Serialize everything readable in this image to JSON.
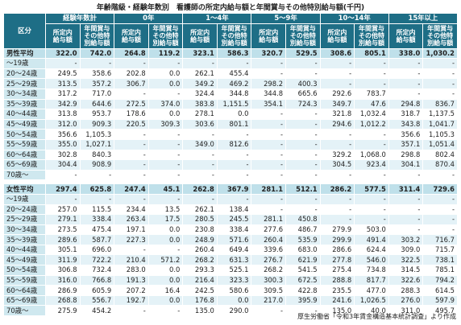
{
  "title": "年齢階級・経験年数別　看護師の所定内給与額と年間賞与その他特別給与額(千円)",
  "header": {
    "category": "区分",
    "groups": [
      "経験年数計",
      "0年",
      "1～4年",
      "5～9年",
      "10～14年",
      "15年以上"
    ],
    "subheaders": [
      "所定内\n給与額",
      "年間賞与\nその他特\n別給与額"
    ]
  },
  "sections": [
    {
      "rows": [
        [
          "男性平均",
          "322.0",
          "742.0",
          "264.8",
          "119.2",
          "323.1",
          "586.3",
          "320.7",
          "529.5",
          "308.6",
          "805.1",
          "338.0",
          "1,030.2"
        ],
        [
          "～19歳",
          "-",
          "-",
          "-",
          "-",
          "-",
          "-",
          "-",
          "-",
          "-",
          "-",
          "-",
          "-"
        ],
        [
          "20～24歳",
          "249.5",
          "358.6",
          "202.8",
          "0.0",
          "262.1",
          "455.4",
          "-",
          "-",
          "-",
          "-",
          "-",
          "-"
        ],
        [
          "25～29歳",
          "313.5",
          "357.2",
          "306.7",
          "0.0",
          "349.2",
          "469.2",
          "298.2",
          "400.3",
          "-",
          "-",
          "-",
          "-"
        ],
        [
          "30～34歳",
          "317.2",
          "717.0",
          "-",
          "-",
          "324.4",
          "344.8",
          "344.8",
          "665.6",
          "292.6",
          "783.7",
          "-",
          "-"
        ],
        [
          "35～39歳",
          "342.9",
          "644.6",
          "272.5",
          "374.0",
          "383.8",
          "1,151.5",
          "354.1",
          "724.3",
          "349.7",
          "47.6",
          "294.8",
          "836.7"
        ],
        [
          "40～44歳",
          "313.8",
          "953.7",
          "178.6",
          "0.0",
          "278.1",
          "0.0",
          "-",
          "-",
          "321.8",
          "1,032.4",
          "318.7",
          "1,137.5"
        ],
        [
          "45～49歳",
          "312.0",
          "909.3",
          "220.5",
          "309.3",
          "303.6",
          "801.1",
          "-",
          "-",
          "294.6",
          "1,012.2",
          "343.8",
          "1,041.7"
        ],
        [
          "50～54歳",
          "356.6",
          "1,105.3",
          "-",
          "-",
          "-",
          "-",
          "-",
          "-",
          "-",
          "-",
          "356.6",
          "1,105.3"
        ],
        [
          "55～59歳",
          "355.0",
          "1,027.1",
          "-",
          "-",
          "349.0",
          "812.6",
          "-",
          "-",
          "-",
          "-",
          "357.1",
          "1,051.4"
        ],
        [
          "60～64歳",
          "302.8",
          "840.3",
          "-",
          "-",
          "-",
          "-",
          "-",
          "-",
          "329.2",
          "1,068.0",
          "298.8",
          "802.4"
        ],
        [
          "65～69歳",
          "304.4",
          "908.9",
          "-",
          "-",
          "-",
          "-",
          "-",
          "-",
          "304.5",
          "923.4",
          "304.1",
          "870.4"
        ],
        [
          "70歳～",
          "-",
          "-",
          "-",
          "-",
          "-",
          "-",
          "-",
          "-",
          "-",
          "-",
          "-",
          "-"
        ]
      ]
    },
    {
      "rows": [
        [
          "女性平均",
          "297.4",
          "625.8",
          "247.4",
          "45.1",
          "262.8",
          "367.9",
          "281.1",
          "512.1",
          "286.2",
          "577.5",
          "311.4",
          "729.6"
        ],
        [
          "～19歳",
          "-",
          "-",
          "-",
          "-",
          "-",
          "-",
          "-",
          "-",
          "-",
          "-",
          "-",
          "-"
        ],
        [
          "20～24歳",
          "257.0",
          "115.5",
          "234.4",
          "13.5",
          "262.1",
          "138.4",
          "-",
          "-",
          "-",
          "-",
          "-",
          "-"
        ],
        [
          "25～29歳",
          "279.1",
          "338.4",
          "263.4",
          "17.5",
          "280.5",
          "245.5",
          "281.1",
          "450.8",
          "-",
          "-",
          "-",
          "-"
        ],
        [
          "30～34歳",
          "273.5",
          "475.4",
          "197.1",
          "0.0",
          "230.8",
          "338.4",
          "277.6",
          "486.7",
          "279.9",
          "503.0",
          "-",
          "-"
        ],
        [
          "35～39歳",
          "289.6",
          "587.7",
          "227.3",
          "0.0",
          "248.9",
          "571.6",
          "260.4",
          "535.9",
          "299.9",
          "491.4",
          "303.2",
          "716.7"
        ],
        [
          "40～44歳",
          "305.1",
          "696.0",
          "-",
          "-",
          "260.4",
          "649.4",
          "339.6",
          "683.0",
          "286.6",
          "624.4",
          "309.0",
          "715.7"
        ],
        [
          "45～49歳",
          "311.9",
          "722.2",
          "210.4",
          "571.2",
          "268.2",
          "631.3",
          "276.7",
          "621.9",
          "277.8",
          "546.0",
          "322.5",
          "738.1"
        ],
        [
          "50～54歳",
          "306.8",
          "732.4",
          "283.0",
          "0.0",
          "293.3",
          "525.1",
          "268.2",
          "541.5",
          "275.4",
          "734.8",
          "314.5",
          "785.1"
        ],
        [
          "55～59歳",
          "316.0",
          "766.8",
          "191.3",
          "0.0",
          "216.4",
          "323.3",
          "300.3",
          "672.5",
          "288.8",
          "817.7",
          "322.6",
          "794.2"
        ],
        [
          "60～64歳",
          "286.9",
          "605.9",
          "207.2",
          "16.4",
          "242.5",
          "580.6",
          "309.5",
          "422.8",
          "235.5",
          "477.0",
          "288.3",
          "614.5"
        ],
        [
          "65～69歳",
          "268.8",
          "556.7",
          "192.7",
          "0.0",
          "176.8",
          "0.0",
          "217.0",
          "395.9",
          "241.6",
          "1,026.5",
          "276.0",
          "597.9"
        ],
        [
          "70歳～",
          "275.9",
          "454.2",
          "-",
          "-",
          "135.0",
          "290.0",
          "-",
          "-",
          "135.0",
          "40.0",
          "311.0",
          "495.7"
        ]
      ]
    }
  ],
  "source": "厚生労働省「令和3年賃金構造基本統計調査」より作成"
}
